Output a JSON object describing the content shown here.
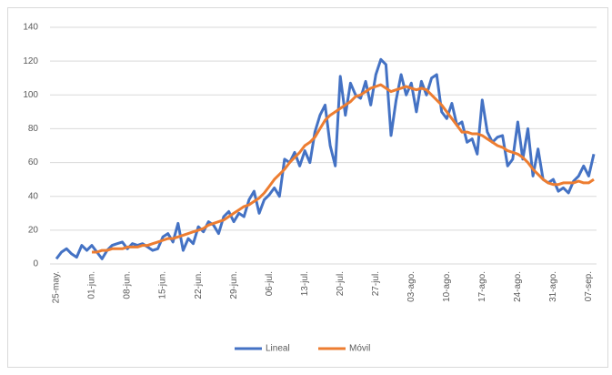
{
  "chart_data": {
    "type": "line",
    "categories": [
      "25-may.",
      null,
      null,
      null,
      null,
      null,
      null,
      "01-jun.",
      null,
      null,
      null,
      null,
      null,
      null,
      "08-jun.",
      null,
      null,
      null,
      null,
      null,
      null,
      "15-jun.",
      null,
      null,
      null,
      null,
      null,
      null,
      "22-jun.",
      null,
      null,
      null,
      null,
      null,
      null,
      "29-jun.",
      null,
      null,
      null,
      null,
      null,
      null,
      "06-jul.",
      null,
      null,
      null,
      null,
      null,
      null,
      "13-jul.",
      null,
      null,
      null,
      null,
      null,
      null,
      "20-jul.",
      null,
      null,
      null,
      null,
      null,
      null,
      "27-jul.",
      null,
      null,
      null,
      null,
      null,
      null,
      "03-ago.",
      null,
      null,
      null,
      null,
      null,
      null,
      "10-ago.",
      null,
      null,
      null,
      null,
      null,
      null,
      "17-ago.",
      null,
      null,
      null,
      null,
      null,
      null,
      "24-ago.",
      null,
      null,
      null,
      null,
      null,
      null,
      "31-ago.",
      null,
      null,
      null,
      null,
      null,
      null,
      "07-sep.",
      null
    ],
    "series": [
      {
        "name": "Lineal",
        "color": "#4472c4",
        "values": [
          3,
          7,
          9,
          6,
          4,
          11,
          8,
          11,
          7,
          3,
          8,
          11,
          12,
          13,
          9,
          12,
          11,
          12,
          10,
          8,
          9,
          16,
          18,
          13,
          24,
          8,
          15,
          12,
          22,
          19,
          25,
          23,
          18,
          28,
          31,
          25,
          30,
          28,
          38,
          43,
          30,
          38,
          41,
          45,
          40,
          62,
          60,
          66,
          58,
          67,
          60,
          78,
          88,
          94,
          70,
          58,
          111,
          88,
          107,
          100,
          98,
          108,
          94,
          112,
          121,
          118,
          76,
          97,
          112,
          100,
          107,
          90,
          108,
          100,
          110,
          112,
          90,
          86,
          95,
          82,
          84,
          72,
          74,
          65,
          97,
          78,
          72,
          75,
          76,
          58,
          62,
          84,
          62,
          80,
          52,
          68,
          50,
          48,
          50,
          43,
          45,
          42,
          49,
          52,
          58,
          52,
          65
        ]
      },
      {
        "name": "Móvil",
        "color": "#ed7d31",
        "values": [
          null,
          null,
          null,
          null,
          null,
          null,
          null,
          7,
          7,
          8,
          8,
          9,
          9,
          9,
          10,
          10,
          10,
          11,
          11,
          12,
          13,
          14,
          15,
          15,
          16,
          17,
          18,
          19,
          20,
          21,
          23,
          24,
          25,
          26,
          28,
          30,
          32,
          34,
          35,
          37,
          39,
          42,
          46,
          50,
          53,
          56,
          60,
          63,
          66,
          70,
          72,
          75,
          80,
          85,
          88,
          90,
          92,
          94,
          96,
          99,
          100,
          102,
          104,
          105,
          106,
          104,
          102,
          103,
          104,
          105,
          104,
          103,
          104,
          103,
          100,
          97,
          94,
          90,
          86,
          82,
          78,
          78,
          77,
          77,
          76,
          74,
          72,
          70,
          69,
          67,
          66,
          65,
          63,
          60,
          56,
          53,
          50,
          48,
          47,
          47,
          48,
          48,
          48,
          49,
          48,
          48,
          50
        ]
      }
    ],
    "ylim": [
      0,
      140
    ],
    "yticks": [
      0,
      20,
      40,
      60,
      80,
      100,
      120,
      140
    ],
    "grid": true,
    "legend": "bottom"
  }
}
